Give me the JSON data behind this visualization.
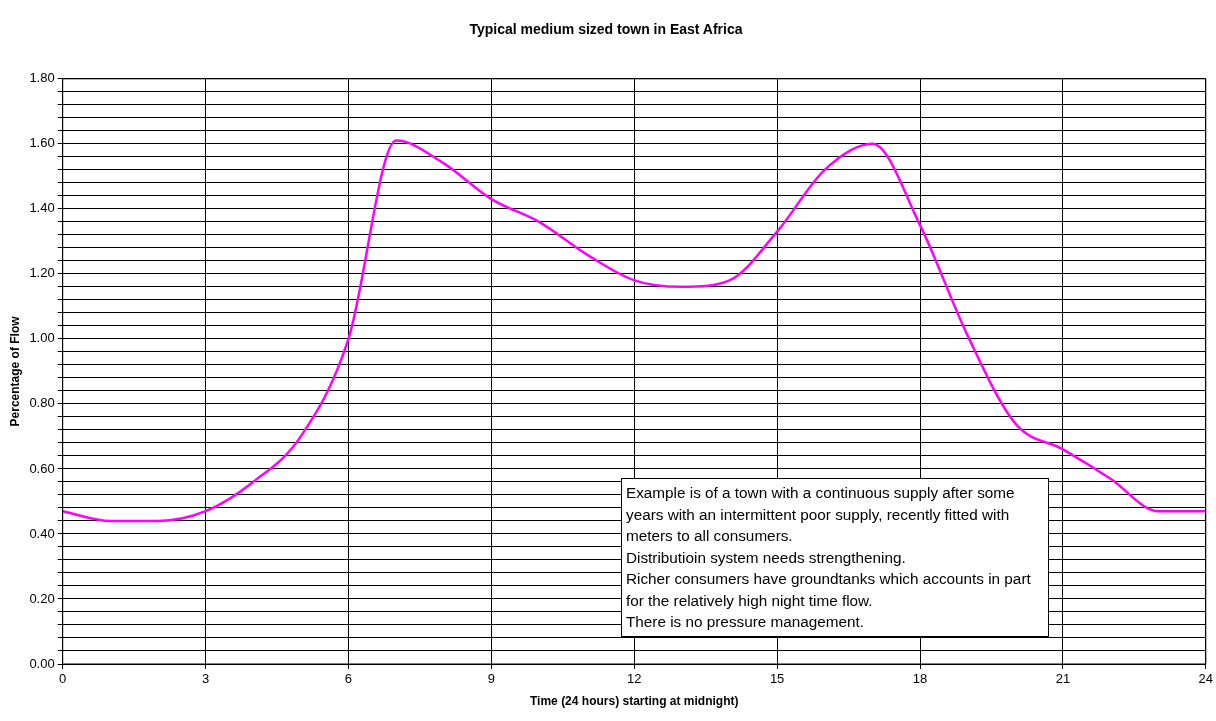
{
  "chart_data": {
    "type": "line",
    "title": "Typical medium sized town in East Africa",
    "xlabel": "Time (24 hours) starting at midnight)",
    "ylabel": "Percentage of Flow",
    "x": [
      0,
      1,
      2,
      3,
      4,
      5,
      6,
      7,
      8,
      9,
      10,
      11,
      12,
      13,
      14,
      15,
      16,
      17,
      18,
      19,
      20,
      21,
      22,
      23,
      24
    ],
    "series": [
      {
        "color": "#ff00ff",
        "values": [
          0.47,
          0.44,
          0.44,
          0.47,
          0.56,
          0.7,
          1.0,
          1.61,
          1.54,
          1.43,
          1.36,
          1.26,
          1.18,
          1.16,
          1.18,
          1.33,
          1.52,
          1.6,
          1.35,
          1.01,
          0.74,
          0.66,
          0.57,
          0.47,
          0.47
        ]
      }
    ],
    "xlim": [
      0,
      24
    ],
    "xticks": [
      0,
      3,
      6,
      9,
      12,
      15,
      18,
      21,
      24
    ],
    "ylim": [
      0,
      1.8
    ],
    "yticks": [
      {
        "value": 0,
        "label": "0.00"
      },
      {
        "value": 0.04,
        "label": null
      },
      {
        "value": 0.08,
        "label": null
      },
      {
        "value": 0.12,
        "label": null
      },
      {
        "value": 0.16,
        "label": null
      },
      {
        "value": 0.2,
        "label": "0.20"
      },
      {
        "value": 0.24,
        "label": null
      },
      {
        "value": 0.28,
        "label": null
      },
      {
        "value": 0.32,
        "label": null
      },
      {
        "value": 0.36,
        "label": null
      },
      {
        "value": 0.4,
        "label": "0.40"
      },
      {
        "value": 0.44,
        "label": null
      },
      {
        "value": 0.48,
        "label": null
      },
      {
        "value": 0.52,
        "label": null
      },
      {
        "value": 0.56,
        "label": null
      },
      {
        "value": 0.6,
        "label": "0.60"
      },
      {
        "value": 0.64,
        "label": null
      },
      {
        "value": 0.68,
        "label": null
      },
      {
        "value": 0.72,
        "label": null
      },
      {
        "value": 0.76,
        "label": null
      },
      {
        "value": 0.8,
        "label": "0.80"
      },
      {
        "value": 0.84,
        "label": null
      },
      {
        "value": 0.88,
        "label": null
      },
      {
        "value": 0.92,
        "label": null
      },
      {
        "value": 0.96,
        "label": null
      },
      {
        "value": 1.0,
        "label": "1.00"
      },
      {
        "value": 1.04,
        "label": null
      },
      {
        "value": 1.08,
        "label": null
      },
      {
        "value": 1.12,
        "label": null
      },
      {
        "value": 1.16,
        "label": null
      },
      {
        "value": 1.2,
        "label": "1.20"
      },
      {
        "value": 1.24,
        "label": null
      },
      {
        "value": 1.28,
        "label": null
      },
      {
        "value": 1.32,
        "label": null
      },
      {
        "value": 1.36,
        "label": null
      },
      {
        "value": 1.4,
        "label": "1.40"
      },
      {
        "value": 1.44,
        "label": null
      },
      {
        "value": 1.48,
        "label": null
      },
      {
        "value": 1.52,
        "label": null
      },
      {
        "value": 1.56,
        "label": null
      },
      {
        "value": 1.6,
        "label": "1.60"
      },
      {
        "value": 1.64,
        "label": null
      },
      {
        "value": 1.68,
        "label": null
      },
      {
        "value": 1.72,
        "label": null
      },
      {
        "value": 1.76,
        "label": null
      },
      {
        "value": 1.8,
        "label": "1.80"
      }
    ],
    "grid": true,
    "legend": false,
    "marker": "none",
    "line_style": "solid",
    "annotations": [
      "Example is of a town with a continuous supply after some years with an intermittent poor supply, recently fitted with meters to all consumers.",
      "Distributioin system needs strengthening.",
      "Richer consumers have groundtanks which accounts in part for the relatively high night time flow.",
      "There is no pressure management."
    ]
  }
}
